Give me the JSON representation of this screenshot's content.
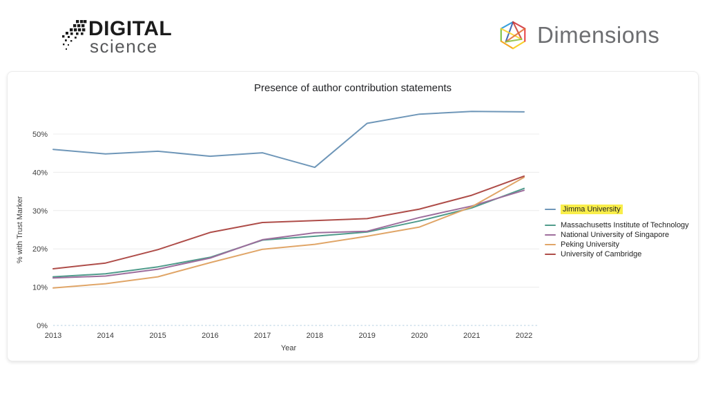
{
  "header": {
    "digital_science_logo": {
      "line1": "DIGITAL",
      "line2": "science"
    },
    "dimensions_logo": {
      "label": "Dimensions"
    }
  },
  "chart_data": {
    "type": "line",
    "title": "Presence of author contribution statements",
    "xlabel": "Year",
    "ylabel": "% with Trust Marker",
    "x": [
      2013,
      2014,
      2015,
      2016,
      2017,
      2018,
      2019,
      2020,
      2021,
      2022
    ],
    "yticks": [
      0,
      10,
      20,
      30,
      40,
      50
    ],
    "ytick_labels": [
      "0%",
      "10%",
      "20%",
      "30%",
      "40%",
      "50%"
    ],
    "ylim": [
      0,
      58
    ],
    "grid": true,
    "legend_position": "right",
    "highlighted_series": "Jimma University",
    "highlight_color": "#f9ee4a",
    "series": [
      {
        "name": "Jimma University",
        "color": "#6e96b8",
        "highlighted": true,
        "values": [
          46.0,
          44.8,
          45.5,
          44.2,
          45.1,
          41.3,
          52.8,
          55.2,
          55.9,
          55.8
        ]
      },
      {
        "name": "Massachusetts Institute of Technology",
        "color": "#4f9b8b",
        "highlighted": false,
        "values": [
          12.7,
          13.5,
          15.3,
          17.8,
          22.3,
          23.3,
          24.4,
          27.3,
          30.7,
          35.8
        ]
      },
      {
        "name": "National University of Singapore",
        "color": "#9d6d9c",
        "highlighted": false,
        "values": [
          12.4,
          12.9,
          14.7,
          17.6,
          22.4,
          24.2,
          24.6,
          28.2,
          31.2,
          35.3
        ]
      },
      {
        "name": "Peking University",
        "color": "#e0a567",
        "highlighted": false,
        "values": [
          9.8,
          10.9,
          12.7,
          16.4,
          19.9,
          21.2,
          23.3,
          25.7,
          31.0,
          38.7
        ]
      },
      {
        "name": "University of Cambridge",
        "color": "#ae4c48",
        "highlighted": false,
        "values": [
          14.8,
          16.3,
          19.8,
          24.3,
          26.9,
          27.4,
          27.9,
          30.4,
          34.0,
          39.0
        ]
      }
    ],
    "colors": {
      "gridline": "#ececec",
      "zero_line": "#cddfeb",
      "axis_text": "#3c3c3c"
    }
  }
}
